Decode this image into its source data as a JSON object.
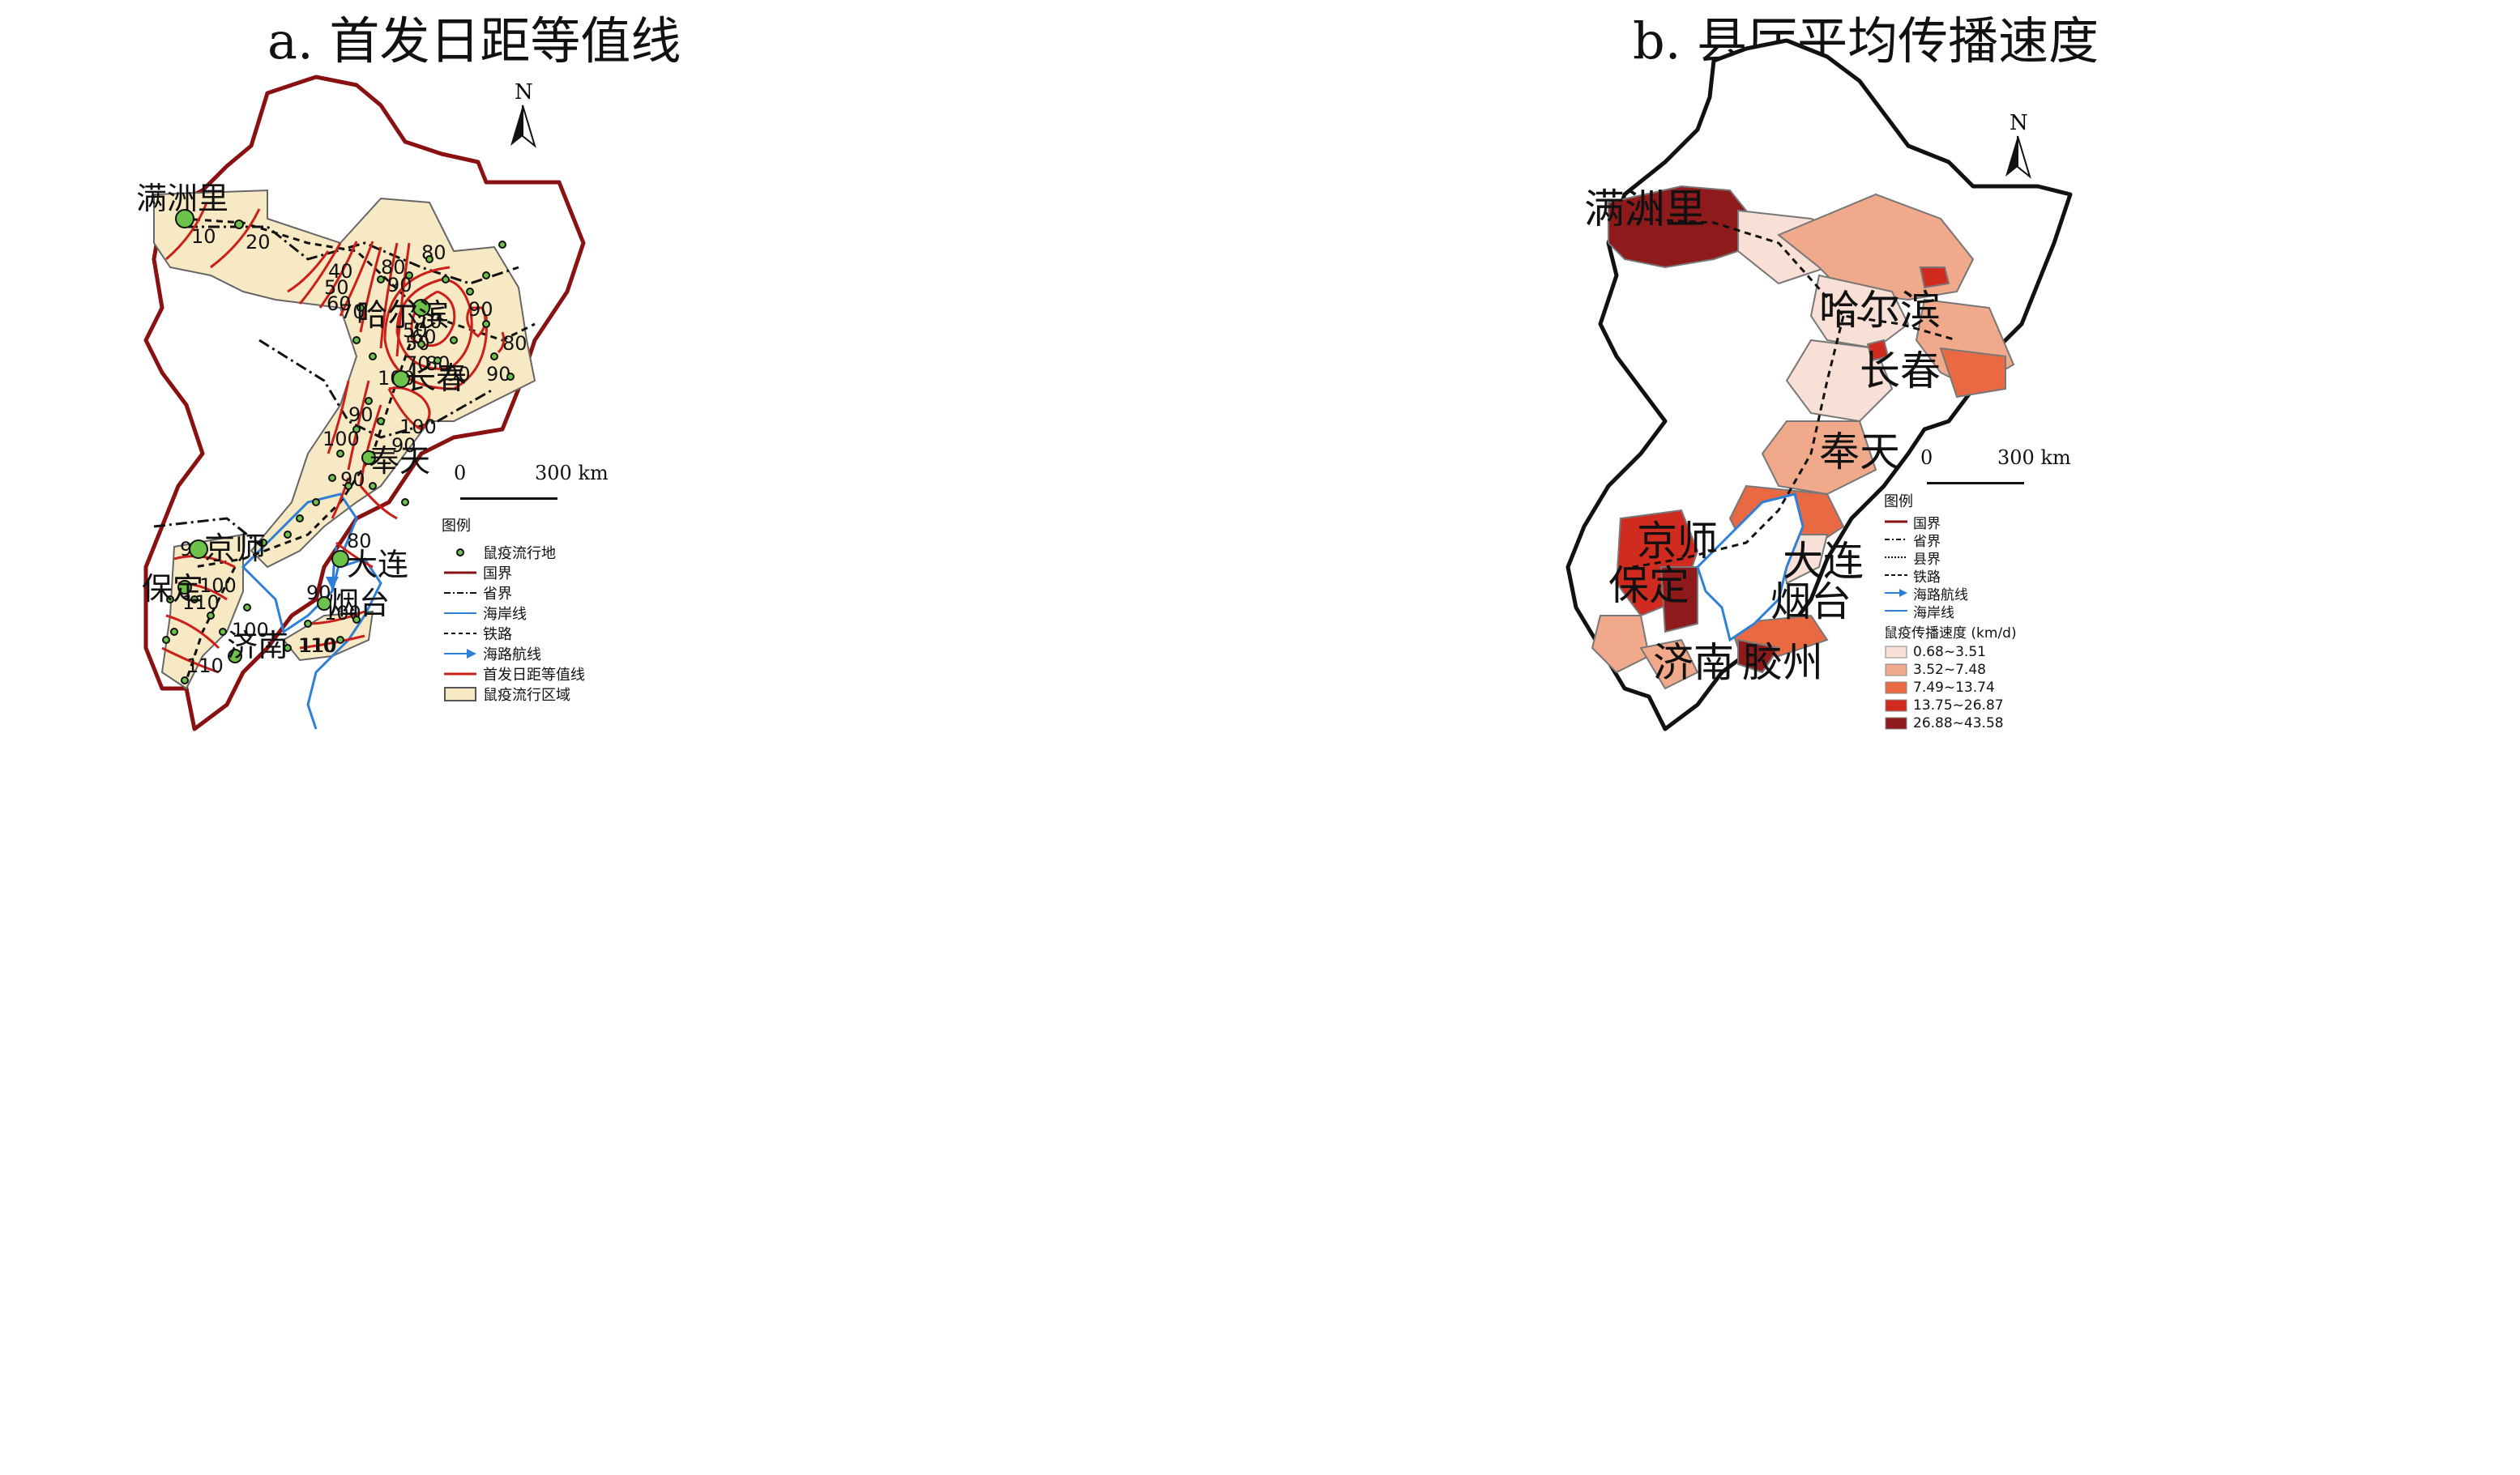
{
  "panel_a": {
    "title": "a. 首发日距等值线",
    "places": [
      "满洲里",
      "哈尔滨",
      "长春",
      "奉天",
      "京师",
      "大连",
      "保定",
      "烟台",
      "济南"
    ],
    "contour_labels": [
      "10",
      "20",
      "40",
      "50",
      "60",
      "70",
      "80",
      "90",
      "50",
      "10",
      "50",
      "60",
      "70",
      "80",
      "90",
      "90",
      "80",
      "90",
      "80",
      "90",
      "100",
      "90",
      "100",
      "90",
      "80",
      "90",
      "100",
      "110",
      "100",
      "110",
      "100",
      "110",
      "90",
      "100",
      "110"
    ],
    "north_label": "N",
    "scale": {
      "zero": "0",
      "max": "300 km"
    },
    "legend": {
      "title": "图例",
      "items": [
        {
          "label": "鼠疫流行地",
          "symbol": "plague-site-dot-icon"
        },
        {
          "label": "国界",
          "symbol": "national-border-line-icon"
        },
        {
          "label": "省界",
          "symbol": "provincial-border-line-icon"
        },
        {
          "label": "海岸线",
          "symbol": "coastline-line-icon"
        },
        {
          "label": "铁路",
          "symbol": "railway-line-icon"
        },
        {
          "label": "海路航线",
          "symbol": "sea-route-arrow-icon"
        },
        {
          "label": "首发日距等值线",
          "symbol": "isoline-icon"
        },
        {
          "label": "鼠疫流行区域",
          "symbol": "epidemic-area-fill-icon"
        }
      ]
    },
    "colors": {
      "area": "#f7e9c4",
      "isoline": "#cc1f1a",
      "coast": "#2e7fd6",
      "dot": "#6cc24a"
    }
  },
  "panel_b": {
    "title": "b. 县厅平均传播速度",
    "places": [
      "满洲里",
      "哈尔滨",
      "长春",
      "奉天",
      "京师",
      "大连",
      "保定",
      "烟台",
      "济南",
      "胶州"
    ],
    "north_label": "N",
    "scale": {
      "zero": "0",
      "max": "300 km"
    },
    "legend": {
      "title": "图例",
      "line_items": [
        {
          "label": "国界",
          "symbol": "national-border-line-icon"
        },
        {
          "label": "省界",
          "symbol": "provincial-border-line-icon"
        },
        {
          "label": "县界",
          "symbol": "county-border-line-icon"
        },
        {
          "label": "铁路",
          "symbol": "railway-line-icon"
        },
        {
          "label": "海路航线",
          "symbol": "sea-route-arrow-icon"
        },
        {
          "label": "海岸线",
          "symbol": "coastline-line-icon"
        }
      ],
      "class_title": "鼠疫传播速度 (km/d)",
      "classes": [
        {
          "label": "0.68~3.51",
          "color": "#f9e0d6"
        },
        {
          "label": "3.52~7.48",
          "color": "#f0a98b"
        },
        {
          "label": "7.49~13.74",
          "color": "#e96a42"
        },
        {
          "label": "13.75~26.87",
          "color": "#d12b1f"
        },
        {
          "label": "26.88~43.58",
          "color": "#8f1a1c"
        }
      ]
    }
  }
}
